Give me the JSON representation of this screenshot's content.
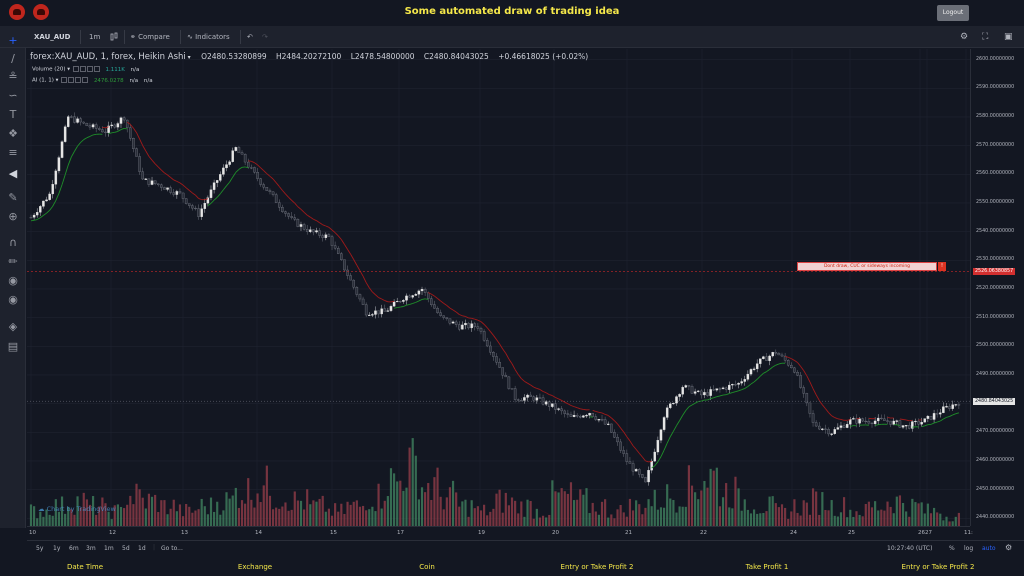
{
  "header": {
    "title": "Some automated draw of trading idea",
    "logout_label": "Logout"
  },
  "toolbar": {
    "symbol": "XAU_AUD",
    "interval": "1m",
    "compare_label": "Compare",
    "indicators_label": "Indicators"
  },
  "legend": {
    "symbol_line": "forex:XAU_AUD, 1, forex, Heikin Ashi",
    "open": "O2480.53280899",
    "high": "H2484.20272100",
    "low": "L2478.54800000",
    "close": "C2480.84043025",
    "change": "+0.46618025 (+0.02%)",
    "volume_label": "Volume (20)",
    "volume_value": "1.111K",
    "volume_na": "n/a",
    "ai_label": "AI (1, 1)",
    "ai_value": "2476.0278",
    "ai_na1": "n/a",
    "ai_na2": "n/a"
  },
  "price_axis": {
    "labels": [
      "2600.00000000",
      "2590.00000000",
      "2580.00000000",
      "2570.00000000",
      "2560.00000000",
      "2550.00000000",
      "2540.00000000",
      "2530.00000000",
      "2520.00000000",
      "2510.00000000",
      "2500.00000000",
      "2490.00000000",
      "2480.00000000",
      "2470.00000000",
      "2460.00000000",
      "2450.00000000",
      "2440.00000000"
    ],
    "alert_price": "2526.06380857",
    "current_price": "2480.84043025"
  },
  "alert": {
    "text": "Dont draw, CUC or sideways incoming",
    "close": "!"
  },
  "time_axis": {
    "labels": [
      "10",
      "12",
      "13",
      "14",
      "15",
      "17",
      "19",
      "20",
      "21",
      "22",
      "24",
      "25",
      "26",
      "27",
      "11:"
    ]
  },
  "range_bar": {
    "ranges": [
      "5y",
      "1y",
      "6m",
      "3m",
      "1m",
      "5d",
      "1d"
    ],
    "goto": "Go to...",
    "clock": "10:27:40 (UTC)",
    "percent": "%",
    "log": "log",
    "auto": "auto"
  },
  "watermark": "Chart by TradingView",
  "footer": [
    "Date Time",
    "Exchange",
    "Coin",
    "Entry or Take Profit 2",
    "Take Profit 1",
    "Entry or Take Profit 2"
  ],
  "colors": {
    "up": "#e6e6e6",
    "down": "#5a5e6b",
    "ma_green": "#1f8f2a",
    "ma_red": "#a11a1a",
    "vol_up": "#3d7a5a",
    "vol_down": "#8a3a45",
    "accent": "#f5e84a"
  },
  "chart_data": {
    "type": "line",
    "ylim": [
      2438,
      2603
    ],
    "price_anchors_x": [
      0,
      6,
      12,
      18,
      24,
      30,
      36,
      42,
      48,
      54,
      60,
      66,
      72,
      78,
      84,
      90,
      96,
      102,
      108,
      114,
      120,
      126,
      132,
      138,
      144,
      150,
      156,
      162,
      168,
      174,
      180,
      186,
      192,
      198,
      204,
      210,
      216,
      222,
      228,
      234,
      240,
      246,
      252,
      258,
      264,
      270,
      276,
      282,
      288,
      294,
      300
    ],
    "price_anchors_y": [
      2545,
      2553,
      2580,
      2577,
      2575,
      2580,
      2558,
      2556,
      2553,
      2546,
      2558,
      2569,
      2560,
      2552,
      2544,
      2540,
      2538,
      2525,
      2512,
      2512,
      2517,
      2520,
      2510,
      2507,
      2507,
      2495,
      2482,
      2482,
      2479,
      2475,
      2477,
      2472,
      2460,
      2452,
      2476,
      2486,
      2483,
      2485,
      2487,
      2494,
      2498,
      2492,
      2473,
      2470,
      2474,
      2474,
      2474,
      2472,
      2474,
      2478,
      2481
    ],
    "volume_profile": [
      3,
      4,
      5,
      4,
      3,
      6,
      5,
      4,
      3,
      4,
      5,
      7,
      8,
      6,
      5,
      4,
      3,
      4,
      6,
      9,
      12,
      8,
      6,
      4,
      3,
      5,
      4,
      3,
      6,
      5,
      4,
      3,
      4,
      5,
      6,
      8,
      10,
      7,
      5,
      4,
      3,
      4,
      5,
      4,
      3,
      4,
      5,
      4,
      3,
      2
    ]
  }
}
